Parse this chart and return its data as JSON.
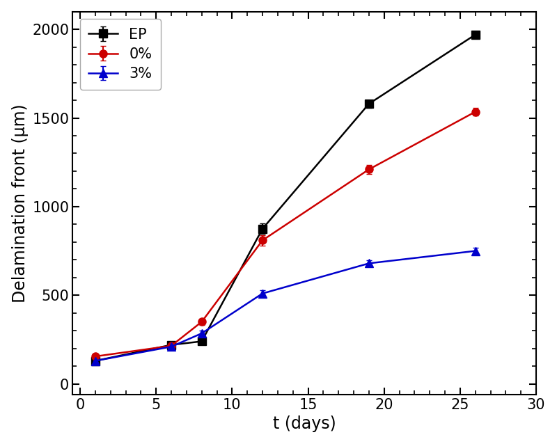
{
  "EP": {
    "x": [
      1,
      6,
      8,
      12,
      19,
      26
    ],
    "y": [
      130,
      220,
      240,
      875,
      1580,
      1970
    ],
    "yerr": [
      15,
      12,
      12,
      30,
      22,
      18
    ],
    "color": "#000000",
    "marker": "s",
    "label": "EP"
  },
  "0pct": {
    "x": [
      1,
      6,
      8,
      12,
      19,
      26
    ],
    "y": [
      155,
      215,
      350,
      810,
      1210,
      1535
    ],
    "yerr": [
      12,
      12,
      18,
      30,
      25,
      22
    ],
    "color": "#cc0000",
    "marker": "o",
    "label": "0%"
  },
  "3pct": {
    "x": [
      1,
      6,
      8,
      12,
      19,
      26
    ],
    "y": [
      130,
      210,
      285,
      510,
      680,
      750
    ],
    "yerr": [
      10,
      10,
      14,
      18,
      18,
      18
    ],
    "color": "#0000cc",
    "marker": "^",
    "label": "3%"
  },
  "xlabel": "t (days)",
  "ylabel": "Delamination front (μm)",
  "xlim": [
    -0.5,
    30
  ],
  "ylim": [
    -60,
    2100
  ],
  "xticks": [
    0,
    5,
    10,
    15,
    20,
    25,
    30
  ],
  "yticks": [
    0,
    500,
    1000,
    1500,
    2000
  ],
  "figsize": [
    8.0,
    6.38
  ],
  "dpi": 100,
  "markersize": 8,
  "linewidth": 1.8,
  "capsize": 3,
  "elinewidth": 1.5,
  "legend_loc": "upper left",
  "legend_fontsize": 15,
  "axis_label_fontsize": 17,
  "tick_fontsize": 15
}
